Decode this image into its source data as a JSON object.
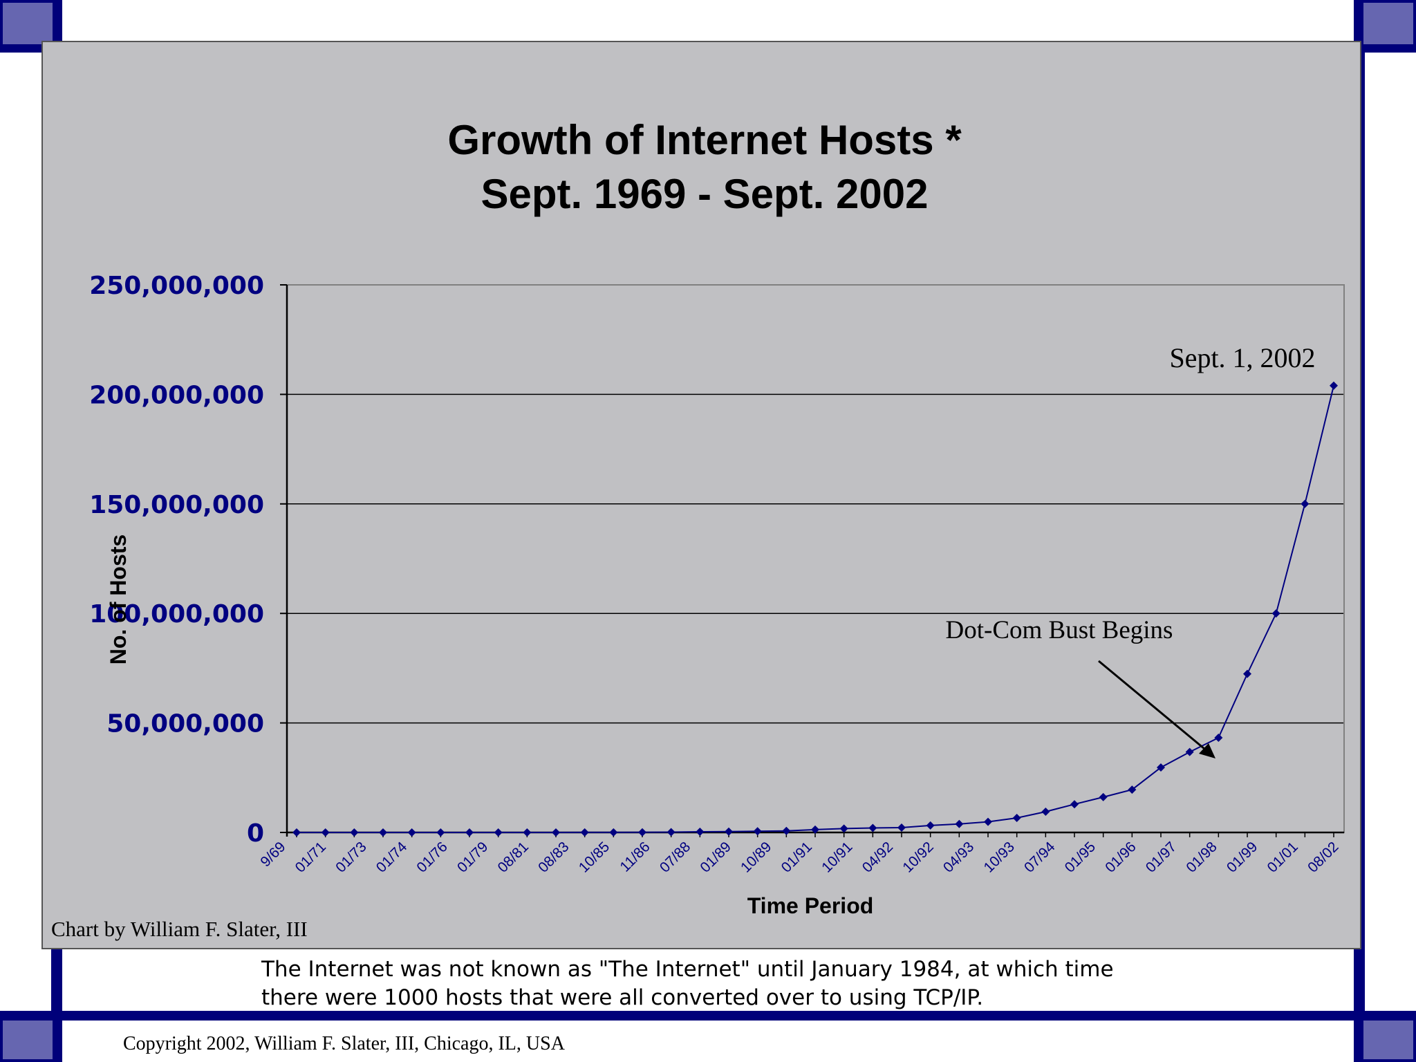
{
  "chart_data": {
    "type": "line",
    "title": [
      "Growth of Internet Hosts *",
      "Sept. 1969 - Sept. 2002"
    ],
    "xlabel": "Time Period",
    "ylabel": "No. of Hosts",
    "ylim": [
      0,
      250000000
    ],
    "yticks": [
      0,
      50000000,
      100000000,
      150000000,
      200000000,
      250000000
    ],
    "ytick_labels": [
      "0",
      "50,000,000",
      "100,000,000",
      "150,000,000",
      "200,000,000",
      "250,000,000"
    ],
    "xtick_labels": [
      "9/69",
      "01/71",
      "01/73",
      "01/74",
      "01/76",
      "01/79",
      "08/81",
      "08/83",
      "10/85",
      "11/86",
      "07/88",
      "01/89",
      "10/89",
      "01/91",
      "10/91",
      "04/92",
      "10/92",
      "04/93",
      "10/93",
      "07/94",
      "01/95",
      "01/96",
      "01/97",
      "01/98",
      "01/99",
      "01/01",
      "08/02"
    ],
    "grid": true,
    "marker": "diamond",
    "color": "#000080",
    "values": [
      4,
      13,
      23,
      35,
      62,
      111,
      213,
      562,
      1961,
      5089,
      33000,
      56000,
      80000,
      159000,
      313000,
      376000,
      535000,
      727000,
      1313000,
      1776000,
      2056000,
      2217000,
      3212000,
      3864000,
      4852000,
      6642000,
      9472000,
      12881000,
      16146000,
      19540000,
      29670000,
      36739000,
      43230000,
      72398000,
      100000000,
      150000000,
      204000000
    ],
    "annotations": [
      {
        "text": "Sept. 1, 2002"
      },
      {
        "text": "Dot-Com Bust Begins"
      }
    ],
    "credit": "Chart by William F. Slater, III"
  },
  "footnote": {
    "line1": "The Internet was not known as \"The Internet\" until January 1984, at which time",
    "line2": "there were 1000 hosts that were all converted over to using TCP/IP."
  },
  "copyright": "Copyright 2002, William F. Slater, III, Chicago, IL, USA",
  "colors": {
    "frame": "#00007a",
    "corner": "#6666b0",
    "panel": "#c0c0c3",
    "series": "#000080"
  }
}
